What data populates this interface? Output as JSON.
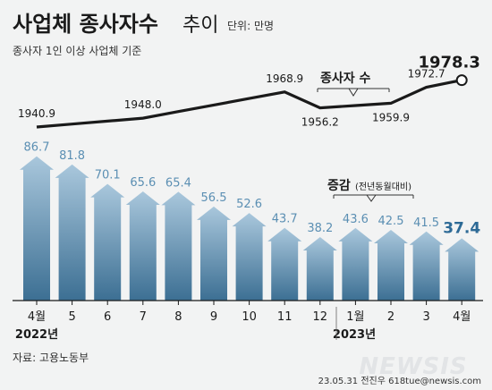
{
  "header": {
    "title_part1": "사업체 종사자수",
    "title_part2": "추이",
    "unit": "단위: 만명",
    "subtitle": "종사자 1인 이상 사업체 기준"
  },
  "chart_data": [
    {
      "type": "line",
      "categories": [
        "4월",
        "5",
        "6",
        "7",
        "8",
        "9",
        "10",
        "11",
        "12",
        "1월",
        "2",
        "3",
        "4월"
      ],
      "series": [
        {
          "name": "종사자 수",
          "values": [
            1940.9,
            null,
            null,
            1948.0,
            null,
            null,
            null,
            1968.9,
            1956.2,
            null,
            1959.9,
            1972.7,
            1978.3
          ]
        }
      ],
      "labels_shown": [
        "1940.9",
        "1948.0",
        "1968.9",
        "1956.2",
        "1959.9",
        "1972.7",
        "1978.3"
      ],
      "legend": "종사자 수"
    },
    {
      "type": "bar",
      "categories": [
        "4월",
        "5",
        "6",
        "7",
        "8",
        "9",
        "10",
        "11",
        "12",
        "1월",
        "2",
        "3",
        "4월"
      ],
      "series": [
        {
          "name": "증감",
          "values": [
            86.7,
            81.8,
            70.1,
            65.6,
            65.4,
            56.5,
            52.6,
            43.7,
            38.2,
            43.6,
            42.5,
            41.5,
            37.4
          ]
        }
      ],
      "legend_main": "증감",
      "legend_sub": "(전년동월대비)",
      "year_labels": [
        "2022년",
        "2023년"
      ]
    }
  ],
  "footer": {
    "source": "자료: 고용노동부",
    "watermark": "NEWSIS",
    "credit": "23.05.31  전진우  618tue@newsis.com"
  },
  "colors": {
    "background": "#f2f3f3",
    "bar_top": "#a9c7dc",
    "bar_bottom": "#3c6f93",
    "bar_label": "#5b8fb3",
    "last_label": "#2d6a96",
    "line": "#1a1a1a"
  }
}
